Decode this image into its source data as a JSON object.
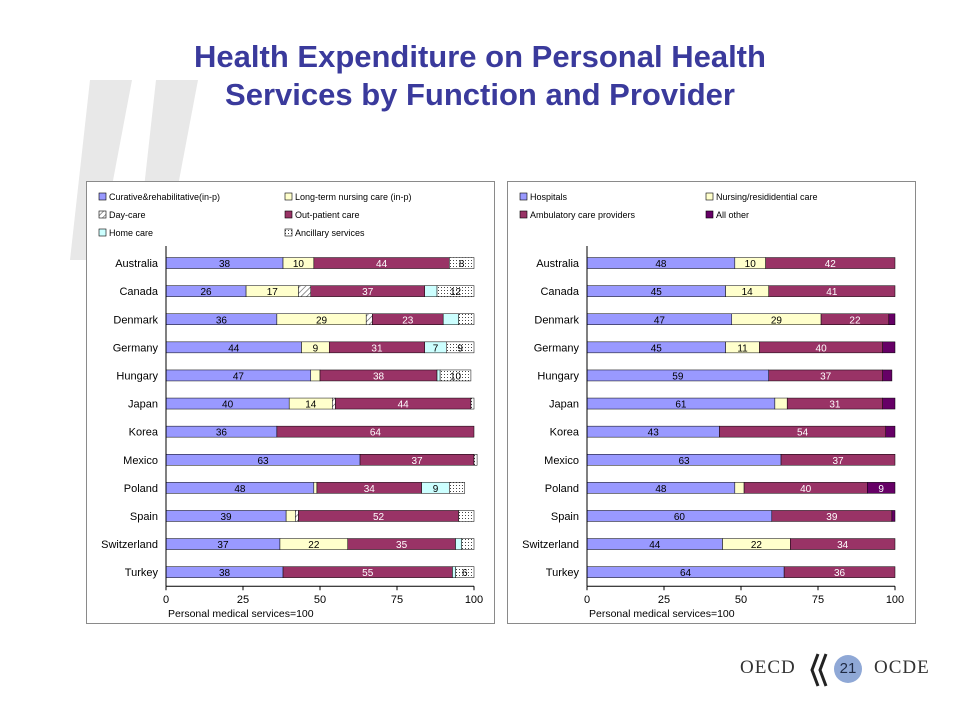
{
  "slide": {
    "title_line1": "Health Expenditure on Personal Health",
    "title_line2": "Services by Function and Provider",
    "page_number": "21",
    "brand_left": "OECD",
    "brand_right": "OCDE"
  },
  "chart_data": [
    {
      "type": "bar",
      "stacked": true,
      "orientation": "horizontal",
      "title": "",
      "xlabel": "Personal medical services=100",
      "xlim": [
        0,
        100
      ],
      "xticks": [
        "0",
        "25",
        "50",
        "75",
        "100"
      ],
      "grid": false,
      "legend_position": "top",
      "categories": [
        "Australia",
        "Canada",
        "Denmark",
        "Germany",
        "Hungary",
        "Japan",
        "Korea",
        "Mexico",
        "Poland",
        "Spain",
        "Switzerland",
        "Turkey"
      ],
      "series": [
        {
          "name": "Curative&rehabilitative(in-p)",
          "color": "#9999ff",
          "pattern": "solid",
          "values": [
            38,
            26,
            36,
            44,
            47,
            40,
            36,
            63,
            48,
            39,
            37,
            38
          ],
          "labels": [
            "38",
            "26",
            "36",
            "44",
            "47",
            "40",
            "36",
            "63",
            "48",
            "39",
            "37",
            "38"
          ]
        },
        {
          "name": "Long-term nursing care (in-p)",
          "color": "#ffffcc",
          "pattern": "solid",
          "values": [
            10,
            17,
            29,
            9,
            3,
            14,
            0,
            0,
            1,
            3,
            22,
            0
          ],
          "labels": [
            "10",
            "17",
            "29",
            "9",
            "",
            "14",
            "",
            "",
            "",
            "",
            "22",
            ""
          ]
        },
        {
          "name": "Day-care",
          "color": "#ffffff",
          "pattern": "hatch",
          "values": [
            0,
            4,
            2,
            0,
            0,
            1,
            0,
            0,
            0,
            1,
            0,
            0
          ],
          "labels": [
            "",
            "",
            "",
            "",
            "",
            "",
            "",
            "",
            "",
            "",
            "",
            ""
          ]
        },
        {
          "name": "Out-patient care",
          "color": "#993366",
          "pattern": "solid",
          "values": [
            44,
            37,
            23,
            31,
            38,
            44,
            64,
            37,
            34,
            52,
            35,
            55
          ],
          "labels": [
            "44",
            "37",
            "23",
            "31",
            "38",
            "44",
            "64",
            "37",
            "34",
            "52",
            "35",
            "55"
          ]
        },
        {
          "name": "Home care",
          "color": "#ccffff",
          "pattern": "solid",
          "values": [
            0,
            4,
            5,
            7,
            1,
            0,
            0,
            0,
            9,
            0,
            2,
            1
          ],
          "labels": [
            "",
            "",
            "",
            "7",
            "",
            "",
            "",
            "",
            "9",
            "",
            "",
            ""
          ]
        },
        {
          "name": "Ancillary services",
          "color": "#ffffff",
          "pattern": "dots",
          "values": [
            8,
            12,
            5,
            9,
            10,
            1,
            0,
            1,
            5,
            5,
            4,
            6
          ],
          "labels": [
            "8",
            "12",
            "",
            "9",
            "10",
            "",
            "",
            "",
            "",
            "",
            "",
            "6"
          ]
        }
      ]
    },
    {
      "type": "bar",
      "stacked": true,
      "orientation": "horizontal",
      "title": "",
      "xlabel": "Personal medical services=100",
      "xlim": [
        0,
        100
      ],
      "xticks": [
        "0",
        "25",
        "50",
        "75",
        "100"
      ],
      "grid": false,
      "legend_position": "top",
      "categories": [
        "Australia",
        "Canada",
        "Denmark",
        "Germany",
        "Hungary",
        "Japan",
        "Korea",
        "Mexico",
        "Poland",
        "Spain",
        "Switzerland",
        "Turkey"
      ],
      "series": [
        {
          "name": "Hospitals",
          "color": "#9999ff",
          "pattern": "solid",
          "values": [
            48,
            45,
            47,
            45,
            59,
            61,
            43,
            63,
            48,
            60,
            44,
            64
          ],
          "labels": [
            "48",
            "45",
            "47",
            "45",
            "59",
            "61",
            "43",
            "63",
            "48",
            "60",
            "44",
            "64"
          ]
        },
        {
          "name": "Nursing/resididential care",
          "color": "#ffffcc",
          "pattern": "solid",
          "values": [
            10,
            14,
            29,
            11,
            0,
            4,
            0,
            0,
            3,
            0,
            22,
            0
          ],
          "labels": [
            "10",
            "14",
            "29",
            "11",
            "",
            "",
            "",
            "",
            "",
            "",
            "22",
            ""
          ]
        },
        {
          "name": "Ambulatory care providers",
          "color": "#993366",
          "pattern": "solid",
          "values": [
            42,
            41,
            22,
            40,
            37,
            31,
            54,
            37,
            40,
            39,
            34,
            36
          ],
          "labels": [
            "42",
            "41",
            "22",
            "40",
            "37",
            "31",
            "54",
            "37",
            "40",
            "39",
            "34",
            "36"
          ]
        },
        {
          "name": "All other",
          "color": "#660066",
          "pattern": "solid",
          "values": [
            0,
            0,
            2,
            4,
            3,
            4,
            3,
            0,
            9,
            1,
            0,
            0
          ],
          "labels": [
            "",
            "",
            "",
            "",
            "",
            "",
            "",
            "",
            "9",
            "",
            "",
            ""
          ]
        }
      ]
    }
  ]
}
